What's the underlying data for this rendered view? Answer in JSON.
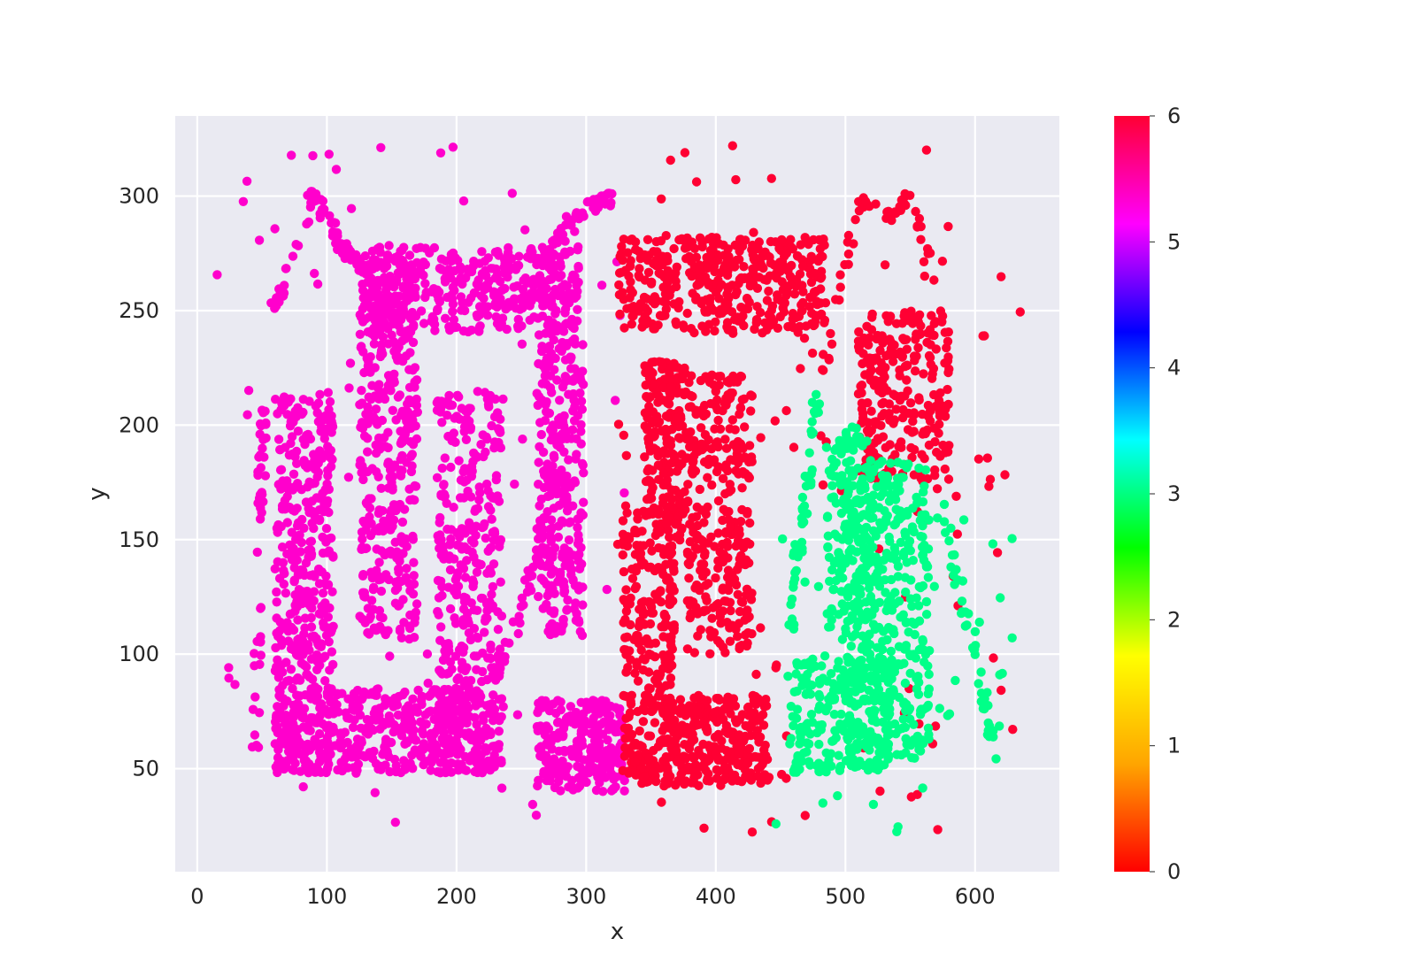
{
  "chart_data": {
    "type": "scatter",
    "title": "",
    "xlabel": "x",
    "ylabel": "y",
    "xlim": [
      -17,
      665
    ],
    "ylim": [
      5,
      335
    ],
    "x_ticks": [
      "0",
      "100",
      "200",
      "300",
      "400",
      "500",
      "600"
    ],
    "y_ticks": [
      "50",
      "100",
      "150",
      "200",
      "250",
      "300"
    ],
    "grid": true,
    "background": "#eaeaf2",
    "colorbar": {
      "min": 0,
      "max": 6,
      "ticks": [
        "0",
        "1",
        "2",
        "3",
        "4",
        "5",
        "6"
      ],
      "colormap": "hsv",
      "colors": [
        "#ff0000",
        "#ffa500",
        "#ffff00",
        "#00ff00",
        "#00ffff",
        "#0000ff",
        "#ff00ff",
        "#ff0033"
      ]
    },
    "point_colors": {
      "0": "#ff0033",
      "3": "#00ff88",
      "6": "#ff00cc"
    },
    "clusters": [
      {
        "label": 6,
        "kind": "rect",
        "x": [
          60,
          105
        ],
        "y": [
          48,
          215
        ],
        "n": 420
      },
      {
        "label": 6,
        "kind": "rect",
        "x": [
          60,
          230
        ],
        "y": [
          48,
          85
        ],
        "n": 420
      },
      {
        "label": 6,
        "kind": "rect",
        "x": [
          125,
          170
        ],
        "y": [
          105,
          275
        ],
        "n": 360
      },
      {
        "label": 6,
        "kind": "rect",
        "x": [
          125,
          295
        ],
        "y": [
          240,
          278
        ],
        "n": 400
      },
      {
        "label": 6,
        "kind": "rect",
        "x": [
          185,
          235
        ],
        "y": [
          48,
          215
        ],
        "n": 380
      },
      {
        "label": 6,
        "kind": "rect",
        "x": [
          262,
          298
        ],
        "y": [
          108,
          245
        ],
        "n": 300
      },
      {
        "label": 6,
        "kind": "rect",
        "x": [
          262,
          330
        ],
        "y": [
          40,
          80
        ],
        "n": 240
      },
      {
        "label": 6,
        "kind": "path",
        "pts": [
          [
            60,
            250
          ],
          [
            90,
            302
          ],
          [
            110,
            280
          ],
          [
            122,
            270
          ]
        ],
        "n": 70
      },
      {
        "label": 6,
        "kind": "path",
        "pts": [
          [
            270,
            275
          ],
          [
            300,
            295
          ],
          [
            320,
            300
          ]
        ],
        "n": 40
      },
      {
        "label": 6,
        "kind": "path",
        "pts": [
          [
            220,
            70
          ],
          [
            250,
            120
          ],
          [
            270,
            160
          ]
        ],
        "n": 35
      },
      {
        "label": 6,
        "kind": "path",
        "pts": [
          [
            45,
            60
          ],
          [
            48,
            160
          ],
          [
            52,
            210
          ]
        ],
        "n": 45
      },
      {
        "label": 6,
        "kind": "noise",
        "x": [
          15,
          330
        ],
        "y": [
          22,
          322
        ],
        "n": 110
      },
      {
        "label": 0,
        "kind": "rect",
        "x": [
          325,
          485
        ],
        "y": [
          240,
          282
        ],
        "n": 420
      },
      {
        "label": 0,
        "kind": "rect",
        "x": [
          345,
          378
        ],
        "y": [
          160,
          228
        ],
        "n": 180
      },
      {
        "label": 0,
        "kind": "rect",
        "x": [
          378,
          428
        ],
        "y": [
          100,
          222
        ],
        "n": 300
      },
      {
        "label": 0,
        "kind": "rect",
        "x": [
          328,
          368
        ],
        "y": [
          42,
          165
        ],
        "n": 300
      },
      {
        "label": 0,
        "kind": "rect",
        "x": [
          368,
          440
        ],
        "y": [
          42,
          82
        ],
        "n": 260
      },
      {
        "label": 0,
        "kind": "rect",
        "x": [
          510,
          580
        ],
        "y": [
          175,
          250
        ],
        "n": 260
      },
      {
        "label": 0,
        "kind": "path",
        "pts": [
          [
            480,
            215
          ],
          [
            490,
            240
          ],
          [
            510,
            300
          ],
          [
            530,
            290
          ],
          [
            550,
            300
          ],
          [
            570,
            260
          ]
        ],
        "n": 55
      },
      {
        "label": 0,
        "kind": "path",
        "pts": [
          [
            360,
            110
          ],
          [
            370,
            150
          ],
          [
            375,
            165
          ]
        ],
        "n": 30
      },
      {
        "label": 0,
        "kind": "noise",
        "x": [
          320,
          635
        ],
        "y": [
          22,
          322
        ],
        "n": 110
      },
      {
        "label": 3,
        "kind": "rect",
        "x": [
          500,
          565
        ],
        "y": [
          50,
          185
        ],
        "n": 400
      },
      {
        "label": 3,
        "kind": "rect",
        "x": [
          455,
          535
        ],
        "y": [
          48,
          100
        ],
        "n": 220
      },
      {
        "label": 3,
        "kind": "rect",
        "x": [
          485,
          520
        ],
        "y": [
          105,
          200
        ],
        "n": 160
      },
      {
        "label": 3,
        "kind": "path",
        "pts": [
          [
            478,
            212
          ],
          [
            470,
            170
          ],
          [
            462,
            140
          ],
          [
            458,
            110
          ]
        ],
        "n": 50
      },
      {
        "label": 3,
        "kind": "path",
        "pts": [
          [
            575,
            165
          ],
          [
            590,
            125
          ],
          [
            605,
            90
          ],
          [
            615,
            55
          ]
        ],
        "n": 45
      },
      {
        "label": 3,
        "kind": "noise",
        "x": [
          445,
          635
        ],
        "y": [
          22,
          165
        ],
        "n": 50
      }
    ]
  }
}
